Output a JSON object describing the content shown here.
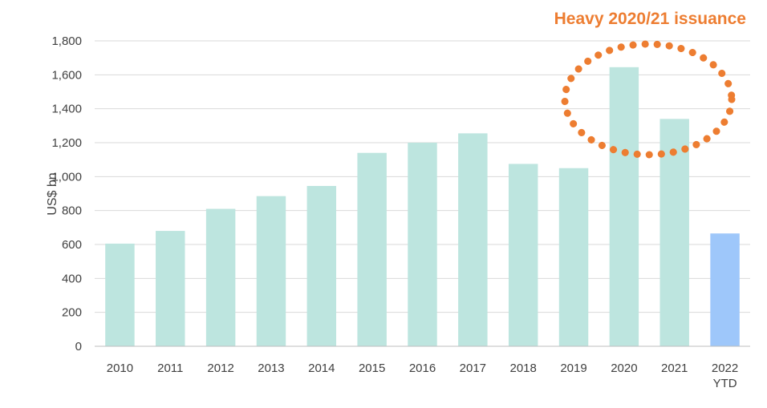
{
  "chart_data": {
    "type": "bar",
    "title": "",
    "xlabel": "",
    "ylabel": "US$ bn",
    "ylim": [
      0,
      1800
    ],
    "yticks": [
      0,
      200,
      400,
      600,
      800,
      1000,
      1200,
      1400,
      1600,
      1800
    ],
    "ytick_labels": [
      "0",
      "200",
      "400",
      "600",
      "800",
      "1,000",
      "1,200",
      "1,400",
      "1,600",
      "1,800"
    ],
    "grid": true,
    "legend": "none",
    "categories": [
      "2010",
      "2011",
      "2012",
      "2013",
      "2014",
      "2015",
      "2016",
      "2017",
      "2018",
      "2019",
      "2020",
      "2021",
      "2022\nYTD"
    ],
    "values": [
      605,
      680,
      810,
      885,
      945,
      1140,
      1200,
      1255,
      1075,
      1050,
      1645,
      1340,
      665
    ],
    "bar_colors": [
      "#bde5df",
      "#bde5df",
      "#bde5df",
      "#bde5df",
      "#bde5df",
      "#bde5df",
      "#bde5df",
      "#bde5df",
      "#bde5df",
      "#bde5df",
      "#bde5df",
      "#bde5df",
      "#9ec7fa"
    ],
    "annotations": [
      {
        "text": "Heavy 2020/21 issuance",
        "color": "#ed7d31",
        "style": "dotted-ellipse",
        "highlights": [
          "2020",
          "2021"
        ]
      }
    ]
  },
  "colors": {
    "gridline": "#d9d9d9",
    "axis": "#bfbfbf",
    "tick_text": "#404040"
  }
}
